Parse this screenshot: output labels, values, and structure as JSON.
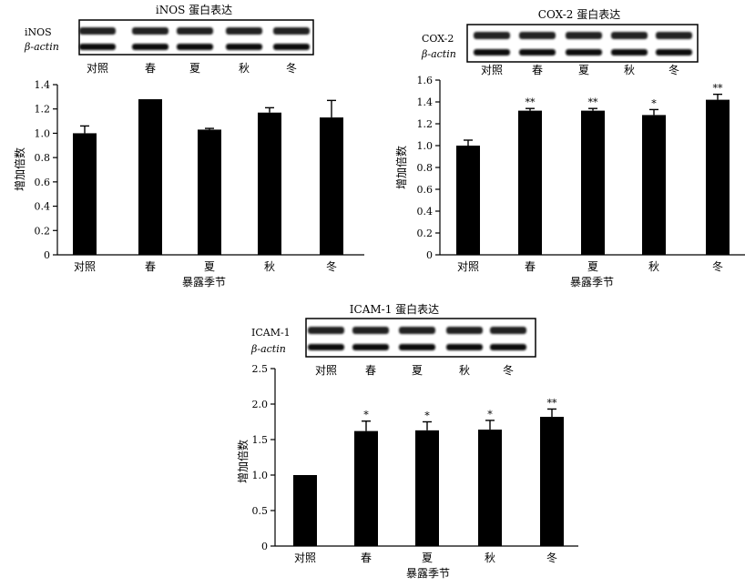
{
  "chart_data": [
    {
      "type": "bar",
      "title": "iNOS 蛋白表达",
      "blot_labels": [
        "iNOS",
        "β-actin"
      ],
      "categories": [
        "对照",
        "春",
        "夏",
        "秋",
        "冬"
      ],
      "values": [
        1.0,
        1.28,
        1.03,
        1.17,
        1.13
      ],
      "errors": [
        0.06,
        0.0,
        0.01,
        0.04,
        0.14
      ],
      "significance": [
        "",
        "",
        "",
        "",
        ""
      ],
      "ylabel": "增加倍数",
      "xlabel": "暴露季节",
      "ylim": [
        0,
        1.4
      ],
      "yticks": [
        "0",
        "0.2",
        "0.4",
        "0.6",
        "0.8",
        "1.0",
        "1.2",
        "1.4"
      ]
    },
    {
      "type": "bar",
      "title": "COX-2 蛋白表达",
      "blot_labels": [
        "COX-2",
        "β-actin"
      ],
      "categories": [
        "对照",
        "春",
        "夏",
        "秋",
        "冬"
      ],
      "values": [
        1.0,
        1.32,
        1.32,
        1.28,
        1.42
      ],
      "errors": [
        0.05,
        0.02,
        0.02,
        0.05,
        0.05
      ],
      "significance": [
        "",
        "**",
        "**",
        "*",
        "**"
      ],
      "ylabel": "增加倍数",
      "xlabel": "暴露季节",
      "ylim": [
        0,
        1.6
      ],
      "yticks": [
        "0",
        "0.2",
        "0.4",
        "0.6",
        "0.8",
        "1.0",
        "1.2",
        "1.4",
        "1.6"
      ]
    },
    {
      "type": "bar",
      "title": "ICAM-1 蛋白表达",
      "blot_labels": [
        "ICAM-1",
        "β-actin"
      ],
      "categories": [
        "对照",
        "春",
        "夏",
        "秋",
        "冬"
      ],
      "values": [
        1.0,
        1.62,
        1.63,
        1.64,
        1.82
      ],
      "errors": [
        0.0,
        0.14,
        0.12,
        0.13,
        0.11
      ],
      "significance": [
        "",
        "*",
        "*",
        "*",
        "**"
      ],
      "ylabel": "增加倍数",
      "xlabel": "暴露季节",
      "ylim": [
        0,
        2.5
      ],
      "yticks": [
        "0",
        "0.5",
        "1.0",
        "1.5",
        "2.0",
        "2.5"
      ]
    }
  ]
}
